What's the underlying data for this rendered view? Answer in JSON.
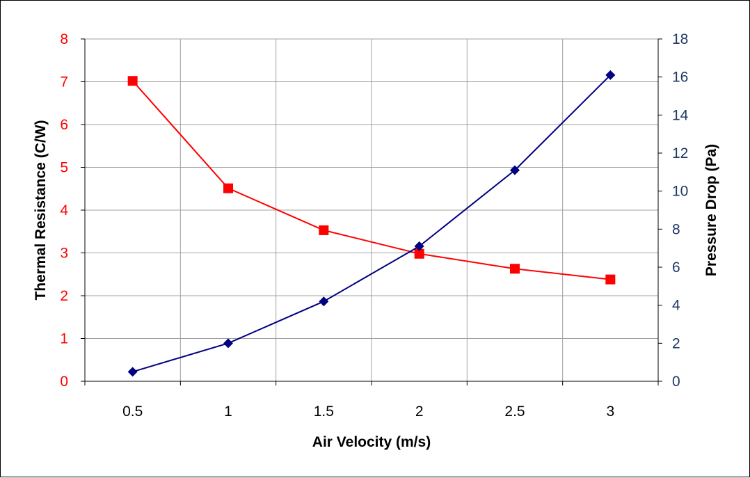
{
  "chart_data": {
    "type": "line",
    "xlabel": "Air Velocity (m/s)",
    "ylabel_left": "Thermal Resistance (C/W)",
    "ylabel_right": "Pressure Drop (Pa)",
    "x": [
      0.5,
      1,
      1.5,
      2,
      2.5,
      3
    ],
    "x_tick_labels": [
      "0.5",
      "1",
      "1.5",
      "2",
      "2.5",
      "3"
    ],
    "ylim_left": [
      0,
      8
    ],
    "ylim_right": [
      0,
      18
    ],
    "y_left_ticks": [
      0,
      1,
      2,
      3,
      4,
      5,
      6,
      7,
      8
    ],
    "y_right_ticks": [
      0,
      2,
      4,
      6,
      8,
      10,
      12,
      14,
      16,
      18
    ],
    "grid": true,
    "legend": "none",
    "series": [
      {
        "axis": "left",
        "color": "#ff0000",
        "marker": "square",
        "values": [
          7.02,
          4.51,
          3.53,
          2.98,
          2.63,
          2.38
        ]
      },
      {
        "axis": "right",
        "color": "#000080",
        "marker": "diamond",
        "values": [
          0.5,
          2.0,
          4.2,
          7.1,
          11.1,
          16.1
        ]
      }
    ],
    "colors": {
      "left_axis_text": "#ff0000",
      "right_axis_text": "#1f3864",
      "grid": "#a0a0a0",
      "axis": "#000000"
    }
  }
}
